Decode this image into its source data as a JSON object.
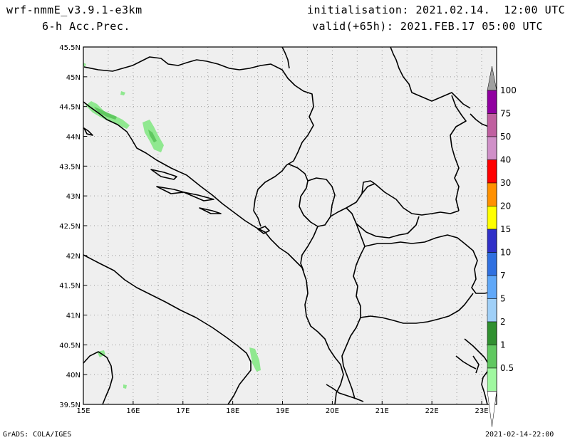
{
  "header": {
    "model": "wrf-nmmE_v3.9.1-e3km",
    "field": "6-h Acc.Prec.",
    "init": "initialisation: 2021.02.14.  12:00 UTC",
    "valid": "valid(+65h): 2021.FEB.17 05:00 UTC"
  },
  "map": {
    "lon_range": [
      15,
      23.3
    ],
    "lat_range": [
      39.5,
      45.5
    ],
    "lat_labels": [
      "45.5N",
      "45N",
      "44.5N",
      "44N",
      "43.5N",
      "43N",
      "42.5N",
      "42N",
      "41.5N",
      "41N",
      "40.5N",
      "40N",
      "39.5N"
    ],
    "lon_labels": [
      "15E",
      "16E",
      "17E",
      "18E",
      "19E",
      "20E",
      "21E",
      "22E",
      "23E"
    ],
    "grid": true,
    "land_color": "#efefef",
    "coast_color": "#000000"
  },
  "colorbar": {
    "labels": [
      "100",
      "75",
      "50",
      "40",
      "30",
      "20",
      "15",
      "10",
      "7",
      "5",
      "2",
      "1",
      "0.5"
    ],
    "colors": [
      "#a0a0a0",
      "#9000a0",
      "#c060a0",
      "#d090c8",
      "#ff0000",
      "#ff9000",
      "#ffff00",
      "#3030c8",
      "#3070e0",
      "#60a8f8",
      "#a0d0f8",
      "#309030",
      "#60c860",
      "#a0f8a0",
      "#ffffff"
    ]
  },
  "footer": {
    "left": "GrADS: COLA/IGES",
    "right": "2021-02-14-22:00"
  }
}
